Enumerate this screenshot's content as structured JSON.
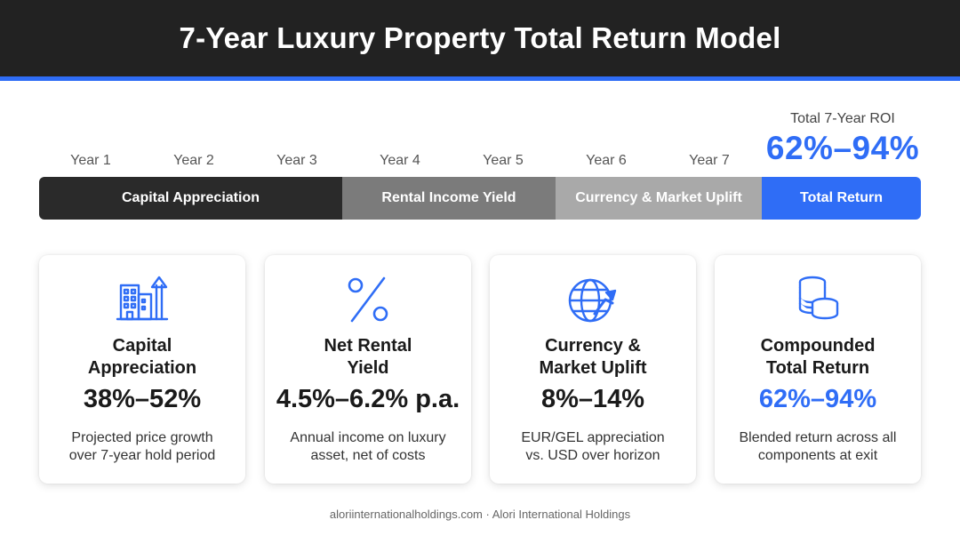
{
  "header": {
    "title": "7-Year Luxury Property Total Return Model"
  },
  "roi": {
    "label": "Total 7-Year ROI",
    "value": "62%–94%"
  },
  "timeline": {
    "years": [
      "Year 1",
      "Year 2",
      "Year 3",
      "Year 4",
      "Year 5",
      "Year 6",
      "Year 7"
    ],
    "segments": [
      {
        "label": "Capital Appreciation",
        "color": "#2a2a2a"
      },
      {
        "label": "Rental Income Yield",
        "color": "#7b7b7b"
      },
      {
        "label": "Currency & Market Uplift",
        "color": "#a9a9a9"
      },
      {
        "label": "Total Return",
        "color": "#2f6df6"
      }
    ]
  },
  "cards": [
    {
      "icon": "building-growth-icon",
      "title": "Capital\nAppreciation",
      "value": "38%–52%",
      "description": "Projected price growth\nover 7-year hold period"
    },
    {
      "icon": "percent-icon",
      "title": "Net Rental\nYield",
      "value": "4.5%–6.2% p.a.",
      "description": "Annual income on luxury\nasset, net of costs"
    },
    {
      "icon": "globe-growth-icon",
      "title": "Currency &\nMarket Uplift",
      "value": "8%–14%",
      "description": "EUR/GEL appreciation\nvs. USD over horizon"
    },
    {
      "icon": "coin-stack-icon",
      "title": "Compounded\nTotal Return",
      "value": "62%–94%",
      "description": "Blended return across all\ncomponents at exit"
    }
  ],
  "footer": {
    "text": "aloriinternationalholdings.com · Alori International Holdings"
  },
  "colors": {
    "accent": "#2f6df6",
    "header_bg": "#222222"
  }
}
